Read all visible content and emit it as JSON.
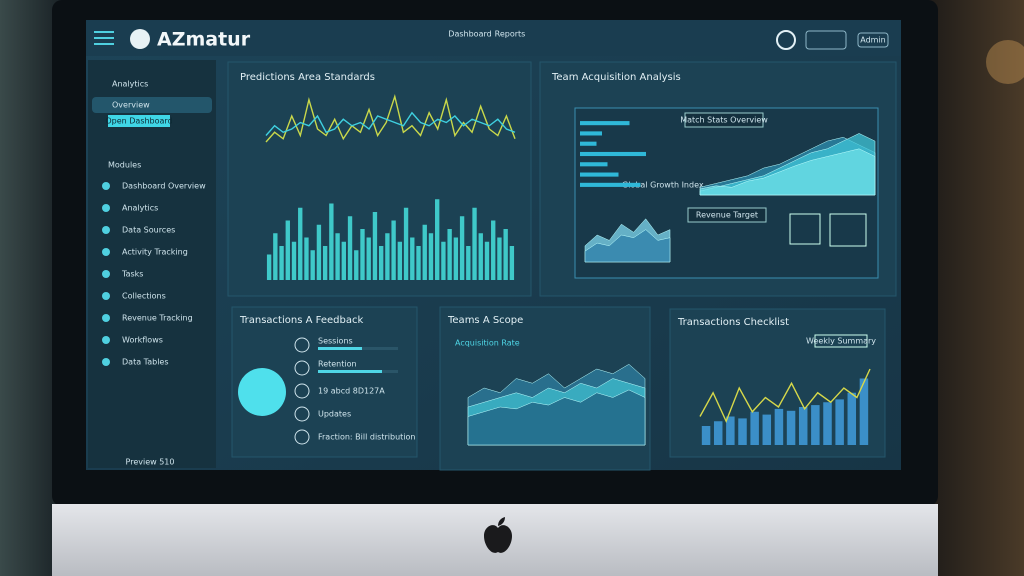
{
  "header": {
    "brand": "AZmatur",
    "tabs": [
      "Dashboard",
      "Reports"
    ],
    "settings": "Admin"
  },
  "sidebar": {
    "section": "Analytics",
    "active": "Overview",
    "button": "Open Dashboard",
    "group": "Modules",
    "items": [
      "Dashboard Overview",
      "Analytics",
      "Data Sources",
      "Activity Tracking",
      "Tasks",
      "Collections",
      "Revenue Tracking",
      "Workflows",
      "Data Tables"
    ],
    "footer": "Preview 510"
  },
  "panels": [
    {
      "title": "Predictions Area Standards",
      "charts": [
        {
          "type": "line",
          "ylim": [
            0,
            100
          ],
          "series": [
            {
              "color": "#c9d84a",
              "values": [
                20,
                35,
                25,
                60,
                30,
                85,
                40,
                30,
                55,
                25,
                45,
                35,
                70,
                30,
                50,
                90,
                35,
                45,
                30,
                65,
                40,
                85,
                30,
                50,
                35,
                75,
                40,
                30,
                60,
                25
              ]
            },
            {
              "color": "#3fd0e0",
              "values": [
                30,
                45,
                35,
                40,
                50,
                45,
                60,
                35,
                40,
                55,
                45,
                50,
                40,
                60,
                55,
                50,
                45,
                65,
                50,
                45,
                55,
                50,
                60,
                45,
                55,
                50,
                45,
                55,
                40,
                35
              ]
            }
          ]
        },
        {
          "type": "bar",
          "ylim": [
            0,
            100
          ],
          "color": "#3fc9c9",
          "values": [
            30,
            55,
            40,
            70,
            45,
            85,
            50,
            35,
            65,
            40,
            90,
            55,
            45,
            75,
            35,
            60,
            50,
            80,
            40,
            55,
            70,
            45,
            85,
            50,
            40,
            65,
            55,
            95,
            45,
            60,
            50,
            75,
            40,
            85,
            55,
            45,
            70,
            50,
            60,
            40
          ]
        }
      ]
    },
    {
      "title": "Team Acquisition Analysis",
      "notes": [
        "Match Stats Overview",
        "Global Growth Index",
        "Revenue Target"
      ],
      "charts": [
        {
          "type": "hbar",
          "xlim": [
            0,
            100
          ],
          "color": "#2fb8d8",
          "values": [
            45,
            20,
            15,
            60,
            25,
            35,
            55
          ]
        },
        {
          "type": "area",
          "ylim": [
            0,
            100
          ],
          "series": [
            {
              "color": "#2e8fb0",
              "values": [
                10,
                15,
                20,
                25,
                35,
                40,
                50,
                60,
                70,
                75,
                65,
                55
              ]
            },
            {
              "color": "#3fc6d8",
              "values": [
                5,
                10,
                15,
                20,
                25,
                35,
                45,
                55,
                60,
                70,
                80,
                70
              ]
            },
            {
              "color": "#6fe0e8",
              "values": [
                8,
                12,
                10,
                18,
                22,
                30,
                38,
                45,
                50,
                55,
                60,
                50
              ]
            }
          ]
        },
        {
          "type": "area",
          "ylim": [
            0,
            100
          ],
          "series": [
            {
              "color": "#7fd8f0",
              "values": [
                30,
                50,
                40,
                70,
                55,
                80,
                50,
                60
              ]
            },
            {
              "color": "#2d7fa8",
              "values": [
                20,
                35,
                30,
                50,
                45,
                60,
                40,
                45
              ]
            }
          ]
        }
      ]
    },
    {
      "title": "Transactions A Feedback",
      "stats": [
        {
          "label": "Sessions",
          "value": 55
        },
        {
          "label": "Retention",
          "value": 80
        },
        {
          "label": "19 abcd 8D127A"
        },
        {
          "label": "Updates"
        },
        {
          "label": "Fraction: Bill distribution"
        }
      ],
      "xlim": [
        0,
        100
      ]
    },
    {
      "title": "Teams A Scope",
      "subtitle": "Acquisition Rate",
      "charts": [
        {
          "type": "area",
          "ylim": [
            0,
            100
          ],
          "series": [
            {
              "color": "#2e7fa0",
              "values": [
                50,
                60,
                55,
                70,
                65,
                75,
                60,
                70,
                80,
                75,
                85,
                70
              ]
            },
            {
              "color": "#3fbfd0",
              "values": [
                40,
                45,
                50,
                55,
                50,
                60,
                55,
                65,
                60,
                70,
                65,
                60
              ]
            },
            {
              "color": "#1f5f80",
              "values": [
                30,
                35,
                40,
                38,
                45,
                42,
                50,
                45,
                55,
                50,
                58,
                50
              ]
            }
          ]
        }
      ]
    },
    {
      "title": "Transactions Checklist",
      "note": "Weekly Summary",
      "charts": [
        {
          "type": "bar",
          "ylim": [
            0,
            100
          ],
          "color": "#3b8fc8",
          "values": [
            20,
            25,
            30,
            28,
            35,
            32,
            38,
            36,
            40,
            42,
            45,
            48,
            55,
            70
          ]
        },
        {
          "type": "line",
          "ylim": [
            0,
            100
          ],
          "series": [
            {
              "color": "#d6d84a",
              "values": [
                30,
                55,
                25,
                60,
                35,
                50,
                40,
                65,
                38,
                55,
                45,
                60,
                50,
                80
              ]
            }
          ]
        }
      ]
    }
  ]
}
